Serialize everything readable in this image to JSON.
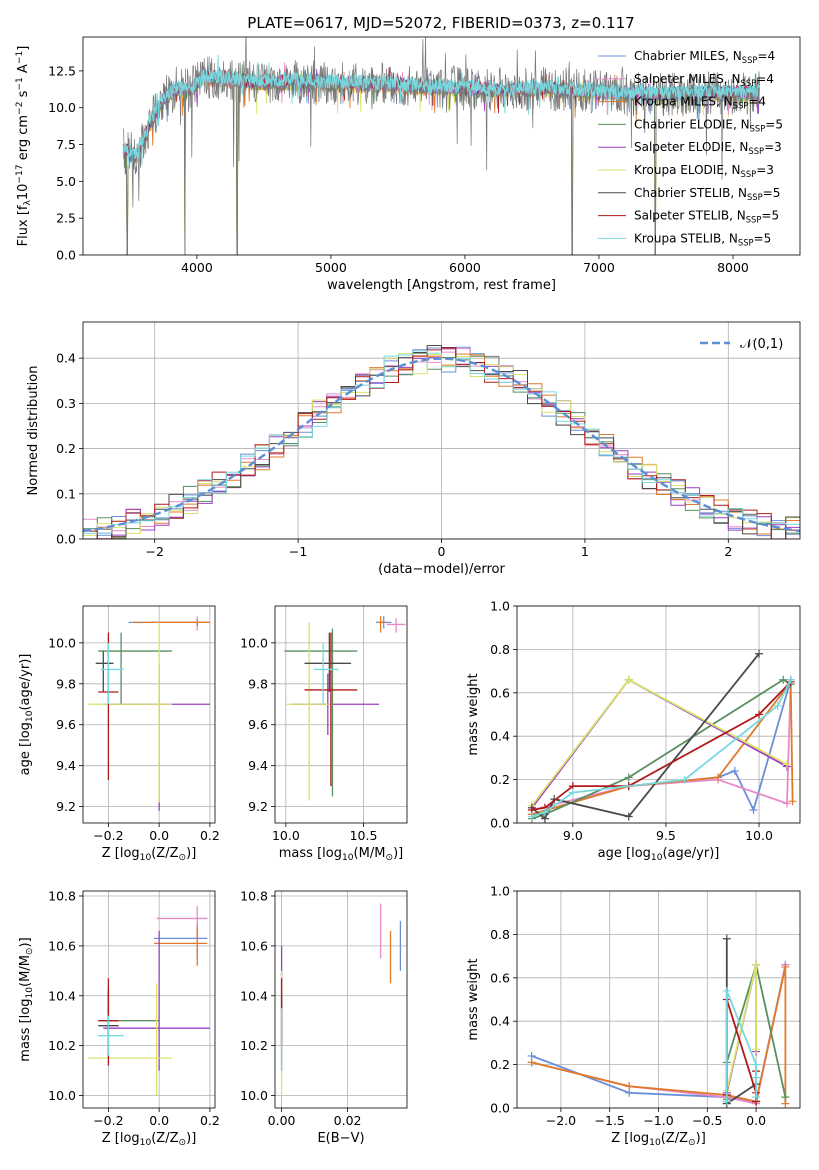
{
  "figure_title": "PLATE=0617, MJD=52072, FIBERID=0373, z=0.117",
  "series_names": [
    "Chabrier MILES, N$_{SSP}$=4",
    "Salpeter MILES, N$_{SSP}$=4",
    "Kroupa MILES, N$_{SSP}$=4",
    "Chabrier ELODIE, N$_{SSP}$=5",
    "Salpeter ELODIE, N$_{SSP}$=3",
    "Kroupa ELODIE, N$_{SSP}$=3",
    "Chabrier STELIB, N$_{SSP}$=5",
    "Salpeter STELIB, N$_{SSP}$=5",
    "Kroupa STELIB, N$_{SSP}$=5"
  ],
  "colors": [
    "#6a8fd9",
    "#e88ac9",
    "#e07b2c",
    "#5a8f5f",
    "#9b3fc0",
    "#d9e26a",
    "#4a4a4a",
    "#b01a1a",
    "#78d8de"
  ],
  "chart_data": [
    {
      "id": "spectrum",
      "type": "line",
      "title": "PLATE=0617, MJD=52072, FIBERID=0373, z=0.117",
      "xlabel": "wavelength [Angstrom, rest frame]",
      "ylabel": "Flux [f$_\\lambda$10$^{-17}$ erg cm$^{-2}$ s$^{-1}$ A$^{-1}$]",
      "xlim": [
        3150,
        8500
      ],
      "ylim": [
        0,
        14.8
      ],
      "xticks": [
        4000,
        5000,
        6000,
        7000,
        8000
      ],
      "yticks": [
        0.0,
        2.5,
        5.0,
        7.5,
        10.0,
        12.5
      ],
      "grid": false,
      "legend_loc": "upper right",
      "data_envelope": [
        [
          3450,
          7.2
        ],
        [
          3550,
          6.7
        ],
        [
          3650,
          9.0
        ],
        [
          3750,
          10.6
        ],
        [
          3850,
          11.3
        ],
        [
          3950,
          11.2
        ],
        [
          4050,
          12.1
        ],
        [
          4200,
          12.0
        ],
        [
          4400,
          11.7
        ],
        [
          4700,
          11.8
        ],
        [
          5000,
          11.7
        ],
        [
          5400,
          11.6
        ],
        [
          5800,
          11.4
        ],
        [
          6200,
          11.2
        ],
        [
          6600,
          11.3
        ],
        [
          7000,
          11.1
        ],
        [
          7400,
          10.9
        ],
        [
          7800,
          11.0
        ],
        [
          8200,
          11.0
        ]
      ],
      "drops": [
        [
          3480,
          0.0
        ],
        [
          3910,
          0.0
        ],
        [
          4300,
          0.0
        ],
        [
          6800,
          0.0
        ],
        [
          7420,
          0.0
        ]
      ]
    },
    {
      "id": "residuals",
      "type": "histogram",
      "xlabel": "(data-model)/error",
      "ylabel": "Normed distribution",
      "xlim": [
        -2.5,
        2.5
      ],
      "ylim": [
        0,
        0.48
      ],
      "xticks": [
        -2,
        -1,
        0,
        1,
        2
      ],
      "yticks": [
        0.0,
        0.1,
        0.2,
        0.3,
        0.4
      ],
      "grid": true,
      "reference_curve": "$\\mathcal{N}(0,1)$",
      "bin_width": 0.1,
      "legend_loc": "upper right"
    },
    {
      "id": "age_vs_Z",
      "type": "scatter-errorbars",
      "xlabel": "Z [log$_{10}$(Z/Z$_\\odot$)]",
      "ylabel": "age  [log$_{10}$(age/yr)]",
      "xlim": [
        -0.3,
        0.22
      ],
      "ylim": [
        9.12,
        10.18
      ],
      "xticks": [
        -0.2,
        0.0,
        0.2
      ],
      "yticks": [
        9.2,
        9.4,
        9.6,
        9.8,
        10.0
      ],
      "grid": true,
      "points": [
        {
          "s": 0,
          "x": 0.15,
          "y": 10.1,
          "xe": [
            -0.12,
            0.2
          ],
          "ye": [
            10.08,
            10.12
          ]
        },
        {
          "s": 1,
          "x": 0.15,
          "y": 10.1,
          "xe": [
            0.0,
            0.2
          ],
          "ye": [
            10.06,
            10.13
          ]
        },
        {
          "s": 2,
          "x": 0.15,
          "y": 10.1,
          "xe": [
            -0.1,
            0.2
          ],
          "ye": [
            10.08,
            10.11
          ]
        },
        {
          "s": 3,
          "x": -0.15,
          "y": 9.96,
          "xe": [
            -0.24,
            0.05
          ],
          "ye": [
            9.7,
            10.05
          ]
        },
        {
          "s": 4,
          "x": 0.0,
          "y": 9.7,
          "xe": [
            -0.22,
            0.2
          ],
          "ye": [
            9.18,
            9.9
          ]
        },
        {
          "s": 5,
          "x": 0.0,
          "y": 9.7,
          "xe": [
            -0.28,
            0.05
          ],
          "ye": [
            9.22,
            10.1
          ]
        },
        {
          "s": 6,
          "x": -0.22,
          "y": 9.9,
          "xe": [
            -0.25,
            -0.18
          ],
          "ye": [
            9.76,
            9.96
          ]
        },
        {
          "s": 7,
          "x": -0.2,
          "y": 9.76,
          "xe": [
            -0.24,
            -0.16
          ],
          "ye": [
            9.33,
            10.05
          ]
        },
        {
          "s": 8,
          "x": -0.2,
          "y": 9.87,
          "xe": [
            -0.23,
            -0.14
          ],
          "ye": [
            9.7,
            10.0
          ]
        }
      ]
    },
    {
      "id": "age_vs_mass",
      "type": "scatter-errorbars",
      "xlabel": "mass [log$_{10}$(M/M$_\\odot$)]",
      "ylabel": "",
      "xlim": [
        9.93,
        10.78
      ],
      "ylim": [
        9.12,
        10.18
      ],
      "xticks": [
        10.0,
        10.5
      ],
      "yticks": [
        9.2,
        9.4,
        9.6,
        9.8,
        10.0
      ],
      "grid": true,
      "points": [
        {
          "s": 0,
          "x": 10.63,
          "y": 10.1,
          "xe": [
            10.58,
            10.68
          ],
          "ye": [
            10.07,
            10.13
          ]
        },
        {
          "s": 1,
          "x": 10.71,
          "y": 10.09,
          "xe": [
            10.65,
            10.77
          ],
          "ye": [
            10.05,
            10.12
          ]
        },
        {
          "s": 2,
          "x": 10.61,
          "y": 10.1,
          "xe": [
            10.59,
            10.64
          ],
          "ye": [
            10.05,
            10.13
          ]
        },
        {
          "s": 3,
          "x": 10.3,
          "y": 9.96,
          "xe": [
            9.99,
            10.46
          ],
          "ye": [
            9.25,
            10.07
          ]
        },
        {
          "s": 4,
          "x": 10.27,
          "y": 9.7,
          "xe": [
            10.04,
            10.6
          ],
          "ye": [
            9.55,
            9.85
          ]
        },
        {
          "s": 5,
          "x": 10.15,
          "y": 9.7,
          "xe": [
            10.0,
            10.3
          ],
          "ye": [
            9.23,
            10.1
          ]
        },
        {
          "s": 6,
          "x": 10.28,
          "y": 9.9,
          "xe": [
            10.12,
            10.42
          ],
          "ye": [
            9.76,
            10.05
          ]
        },
        {
          "s": 7,
          "x": 10.29,
          "y": 9.77,
          "xe": [
            10.12,
            10.46
          ],
          "ye": [
            9.3,
            10.05
          ]
        },
        {
          "s": 8,
          "x": 10.24,
          "y": 9.87,
          "xe": [
            10.18,
            10.34
          ],
          "ye": [
            9.7,
            10.0
          ]
        }
      ]
    },
    {
      "id": "mass_weight_vs_age",
      "type": "line",
      "xlabel": "age  [log$_{10}$(age/yr)]",
      "ylabel": "mass weight",
      "xlim": [
        8.7,
        10.22
      ],
      "ylim": [
        0,
        1.0
      ],
      "xticks": [
        9.0,
        9.5,
        10.0
      ],
      "yticks": [
        0.0,
        0.2,
        0.4,
        0.6,
        0.8,
        1.0
      ],
      "grid": true,
      "series": [
        {
          "s": 0,
          "x": [
            8.78,
            9.3,
            9.78,
            9.87,
            9.97,
            10.17
          ],
          "y": [
            0.04,
            0.17,
            0.21,
            0.24,
            0.06,
            0.66
          ]
        },
        {
          "s": 1,
          "x": [
            8.78,
            9.3,
            9.78,
            10.15,
            10.17
          ],
          "y": [
            0.06,
            0.17,
            0.2,
            0.09,
            0.66
          ]
        },
        {
          "s": 2,
          "x": [
            8.78,
            9.3,
            9.78,
            10.17,
            10.18
          ],
          "y": [
            0.04,
            0.17,
            0.21,
            0.65,
            0.1
          ]
        },
        {
          "s": 3,
          "x": [
            8.78,
            8.85,
            9.3,
            10.13,
            10.17
          ],
          "y": [
            0.02,
            0.04,
            0.21,
            0.66,
            0.64
          ]
        },
        {
          "s": 4,
          "x": [
            8.78,
            9.3,
            10.15
          ],
          "y": [
            0.07,
            0.66,
            0.26
          ]
        },
        {
          "s": 5,
          "x": [
            8.78,
            9.3,
            10.15
          ],
          "y": [
            0.08,
            0.66,
            0.27
          ]
        },
        {
          "s": 6,
          "x": [
            8.78,
            8.85,
            8.9,
            9.3,
            10.0
          ],
          "y": [
            0.07,
            0.02,
            0.11,
            0.03,
            0.78
          ]
        },
        {
          "s": 7,
          "x": [
            8.78,
            8.85,
            9.0,
            9.3,
            10.0,
            10.17
          ],
          "y": [
            0.06,
            0.07,
            0.17,
            0.17,
            0.5,
            0.65
          ]
        },
        {
          "s": 8,
          "x": [
            8.78,
            8.85,
            9.0,
            9.6,
            10.1,
            10.17
          ],
          "y": [
            0.03,
            0.05,
            0.14,
            0.2,
            0.54,
            0.66
          ]
        }
      ]
    },
    {
      "id": "mass_vs_Z",
      "type": "scatter-errorbars",
      "xlabel": "Z [log$_{10}$(Z/Z$_\\odot$)]",
      "ylabel": "mass [log$_{10}$(M/M$_\\odot$)]",
      "xlim": [
        -0.3,
        0.22
      ],
      "ylim": [
        9.95,
        10.82
      ],
      "xticks": [
        -0.2,
        0.0,
        0.2
      ],
      "yticks": [
        10.0,
        10.2,
        10.4,
        10.6,
        10.8
      ],
      "grid": true,
      "points": [
        {
          "s": 0,
          "x": 0.15,
          "y": 10.63,
          "xe": [
            -0.02,
            0.19
          ],
          "ye": [
            10.55,
            10.69
          ]
        },
        {
          "s": 1,
          "x": 0.15,
          "y": 10.71,
          "xe": [
            -0.01,
            0.19
          ],
          "ye": [
            10.6,
            10.76
          ]
        },
        {
          "s": 2,
          "x": 0.15,
          "y": 10.61,
          "xe": [
            -0.02,
            0.19
          ],
          "ye": [
            10.52,
            10.68
          ]
        },
        {
          "s": 3,
          "x": -0.2,
          "y": 10.3,
          "xe": [
            -0.23,
            0.0
          ],
          "ye": [
            10.17,
            10.41
          ]
        },
        {
          "s": 4,
          "x": 0.0,
          "y": 10.27,
          "xe": [
            -0.22,
            0.2
          ],
          "ye": [
            10.1,
            10.66
          ]
        },
        {
          "s": 5,
          "x": -0.01,
          "y": 10.15,
          "xe": [
            -0.28,
            0.05
          ],
          "ye": [
            10.0,
            10.45
          ]
        },
        {
          "s": 6,
          "x": -0.2,
          "y": 10.28,
          "xe": [
            -0.24,
            -0.16
          ],
          "ye": [
            10.16,
            10.43
          ]
        },
        {
          "s": 7,
          "x": -0.2,
          "y": 10.3,
          "xe": [
            -0.24,
            -0.16
          ],
          "ye": [
            10.12,
            10.47
          ]
        },
        {
          "s": 8,
          "x": -0.2,
          "y": 10.24,
          "xe": [
            -0.24,
            -0.14
          ],
          "ye": [
            10.16,
            10.32
          ]
        }
      ]
    },
    {
      "id": "mass_vs_EBV",
      "type": "scatter-errorbars",
      "xlabel": "E(B-V)",
      "ylabel": "",
      "xlim": [
        -0.002,
        0.038
      ],
      "ylim": [
        9.95,
        10.82
      ],
      "xticks": [
        0.0,
        0.02
      ],
      "yticks": [
        10.0,
        10.2,
        10.4,
        10.6,
        10.8
      ],
      "grid": true,
      "points": [
        {
          "s": 0,
          "x": 0.036,
          "y": 10.63,
          "ye": [
            10.5,
            10.7
          ]
        },
        {
          "s": 1,
          "x": 0.03,
          "y": 10.71,
          "ye": [
            10.55,
            10.77
          ]
        },
        {
          "s": 2,
          "x": 0.033,
          "y": 10.61,
          "ye": [
            10.45,
            10.66
          ]
        },
        {
          "s": 3,
          "x": 0.0,
          "y": 10.3,
          "ye": [
            10.1,
            10.5
          ]
        },
        {
          "s": 4,
          "x": 0.0,
          "y": 10.27,
          "ye": [
            10.1,
            10.6
          ]
        },
        {
          "s": 5,
          "x": 0.0,
          "y": 10.15,
          "ye": [
            10.0,
            10.5
          ]
        },
        {
          "s": 6,
          "x": 0.0,
          "y": 10.28,
          "ye": [
            10.2,
            10.4
          ]
        },
        {
          "s": 7,
          "x": 0.0,
          "y": 10.3,
          "ye": [
            10.2,
            10.47
          ]
        },
        {
          "s": 8,
          "x": 0.0,
          "y": 10.24,
          "ye": [
            10.1,
            10.35
          ]
        }
      ]
    },
    {
      "id": "mass_weight_vs_Z",
      "type": "line",
      "xlabel": "Z [log$_{10}$(Z/Z$_\\odot$)]",
      "ylabel": "mass weight",
      "xlim": [
        -2.45,
        0.45
      ],
      "ylim": [
        0,
        1.0
      ],
      "xticks": [
        -2.0,
        -1.5,
        -1.0,
        -0.5,
        0.0
      ],
      "yticks": [
        0.0,
        0.2,
        0.4,
        0.6,
        0.8,
        1.0
      ],
      "grid": true,
      "series": [
        {
          "s": 0,
          "x": [
            -2.3,
            -1.3,
            -0.3,
            0.0,
            0.3
          ],
          "y": [
            0.24,
            0.07,
            0.05,
            0.03,
            0.66
          ]
        },
        {
          "s": 1,
          "x": [
            -2.3,
            -1.3,
            -0.3,
            0.0,
            0.3
          ],
          "y": [
            0.21,
            0.1,
            0.05,
            0.02,
            0.66
          ]
        },
        {
          "s": 2,
          "x": [
            -2.3,
            -1.3,
            -0.3,
            0.0,
            0.3,
            0.3
          ],
          "y": [
            0.21,
            0.1,
            0.06,
            0.03,
            0.65,
            0.02
          ]
        },
        {
          "s": 3,
          "x": [
            -0.3,
            -0.3,
            0.0,
            0.3
          ],
          "y": [
            0.04,
            0.21,
            0.66,
            0.05
          ]
        },
        {
          "s": 4,
          "x": [
            -0.3,
            0.0,
            0.0
          ],
          "y": [
            0.07,
            0.66,
            0.26
          ]
        },
        {
          "s": 5,
          "x": [
            -0.3,
            0.0,
            0.0
          ],
          "y": [
            0.08,
            0.66,
            0.27
          ]
        },
        {
          "s": 6,
          "x": [
            -0.3,
            -0.3,
            -0.3,
            0.0,
            0.0
          ],
          "y": [
            0.03,
            0.78,
            0.02,
            0.11,
            0.03
          ]
        },
        {
          "s": 7,
          "x": [
            -0.3,
            -0.3,
            0.0,
            0.0,
            0.0
          ],
          "y": [
            0.06,
            0.5,
            0.07,
            0.17,
            0.03
          ]
        },
        {
          "s": 8,
          "x": [
            -0.3,
            -0.3,
            0.0,
            0.0,
            0.0
          ],
          "y": [
            0.03,
            0.54,
            0.2,
            0.14,
            0.05
          ]
        }
      ]
    }
  ]
}
